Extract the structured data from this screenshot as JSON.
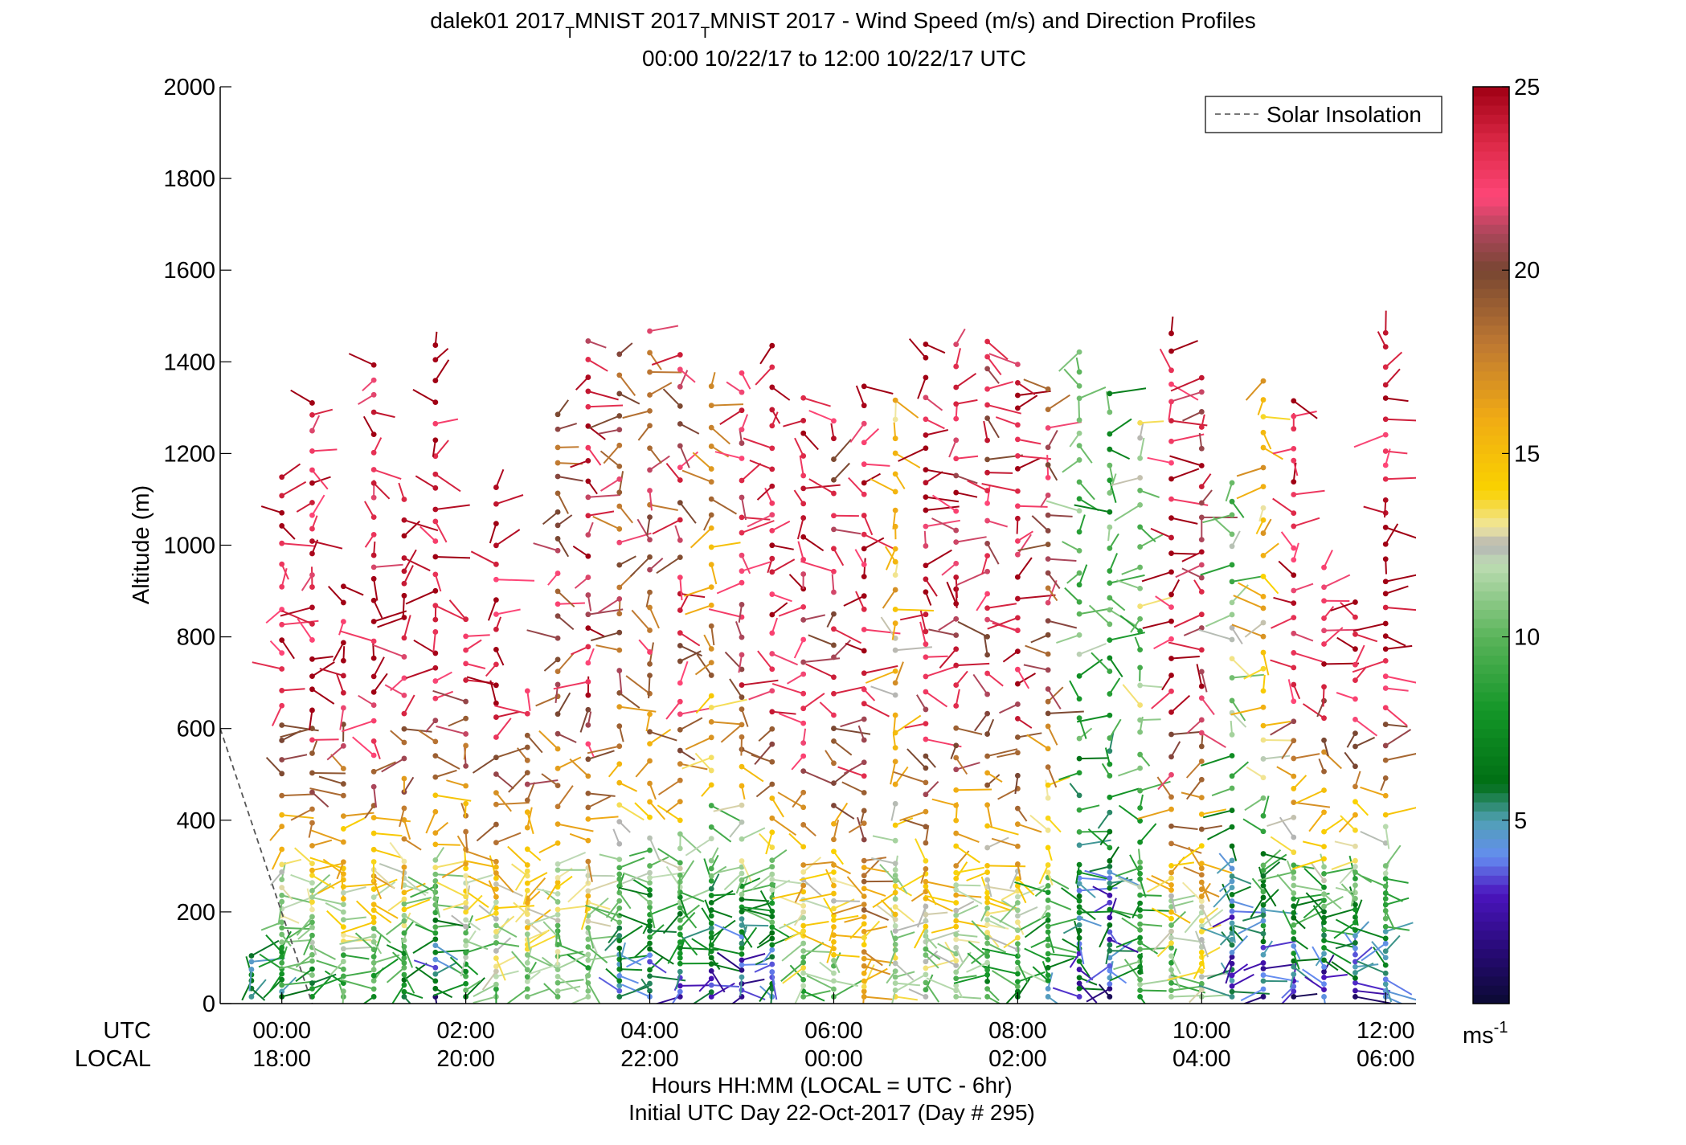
{
  "title": {
    "line1_part1": "dalek01 2017",
    "line1_sub1": "T",
    "line1_part2": "MNIST 2017",
    "line1_sub2": "T",
    "line1_part3": "MNIST 2017 - Wind Speed (m/s) and Direction Profiles",
    "line2": "00:00 10/22/17 to 12:00 10/22/17  UTC"
  },
  "legend": {
    "label": "Solar Insolation",
    "line_style": "dashed",
    "color": "#555555",
    "placement": "top-right"
  },
  "colorbar": {
    "ticks": [
      "5",
      "10",
      "15",
      "20",
      "25"
    ],
    "unit_base": "ms",
    "unit_exp": "-1",
    "range": [
      0,
      25
    ]
  },
  "axes": {
    "ylabel": "Altitude (m)",
    "y_ticks": [
      "0",
      "200",
      "400",
      "600",
      "800",
      "1000",
      "1200",
      "1400",
      "1600",
      "1800",
      "2000"
    ],
    "utc_label": "UTC",
    "local_label": "LOCAL",
    "utc_ticks": [
      "00:00",
      "02:00",
      "04:00",
      "06:00",
      "08:00",
      "10:00",
      "12:00"
    ],
    "local_ticks": [
      "18:00",
      "20:00",
      "22:00",
      "00:00",
      "02:00",
      "04:00",
      "06:00"
    ],
    "xlabel": "Hours HH:MM  (LOCAL = UTC - 6hr)",
    "footer": "Initial UTC Day 22-Oct-2017 (Day # 295)"
  },
  "chart_data": {
    "type": "scatter",
    "description_note": "wind barb profiles: dot at altitude, line segment in wind direction, color = speed (m/s)",
    "x_unit": "hours UTC",
    "y_unit": "m",
    "xlim": [
      -0.67,
      12.33
    ],
    "ylim": [
      0,
      2000
    ],
    "colorscale_range_ms": [
      0,
      25
    ],
    "series": [
      {
        "profile_times_utc_hours": [
          -0.33,
          0.0,
          0.33,
          0.67,
          1.0,
          1.33,
          1.67,
          2.0,
          2.33,
          2.67,
          3.0,
          3.33,
          3.67,
          4.0,
          4.33,
          4.67,
          5.0,
          5.33,
          5.67,
          6.0,
          6.33,
          6.67,
          7.0,
          7.33,
          7.67,
          8.0,
          8.33,
          8.67,
          9.0,
          9.33,
          9.67,
          10.0,
          10.33,
          10.67,
          11.0,
          11.33,
          11.67,
          12.0
        ],
        "profile_top_altitude_m": [
          120,
          1150,
          1330,
          950,
          1430,
          1100,
          1450,
          850,
          1160,
          700,
          1300,
          1480,
          1460,
          1480,
          1440,
          1380,
          1400,
          1460,
          1340,
          1280,
          1350,
          1340,
          1460,
          1440,
          1460,
          1420,
          1360,
          1440,
          1340,
          1280,
          1470,
          1400,
          1160,
          1380,
          1360,
          970,
          890,
          1470
        ],
        "low_level_speed_ms": [
          4,
          6,
          7,
          8,
          8,
          7,
          3,
          8,
          9,
          10,
          9,
          9,
          4,
          3,
          3,
          3,
          2,
          3,
          10,
          11,
          14,
          12,
          10,
          9,
          8,
          8,
          5,
          4,
          3,
          9,
          9,
          10,
          3,
          3,
          2,
          2,
          2,
          2
        ],
        "upper_level_speed_ms": [
          24,
          24,
          24,
          24,
          24,
          24,
          24,
          23,
          24,
          23,
          20,
          23,
          20,
          20,
          22,
          17,
          22,
          24,
          23,
          22,
          24,
          15,
          24,
          23,
          22,
          24,
          20,
          10,
          9,
          11,
          24,
          23,
          11,
          15,
          24,
          24,
          24,
          24
        ]
      }
    ],
    "solar_insolation": {
      "x": [
        -0.67,
        0.33
      ],
      "y": [
        600,
        0
      ]
    }
  }
}
